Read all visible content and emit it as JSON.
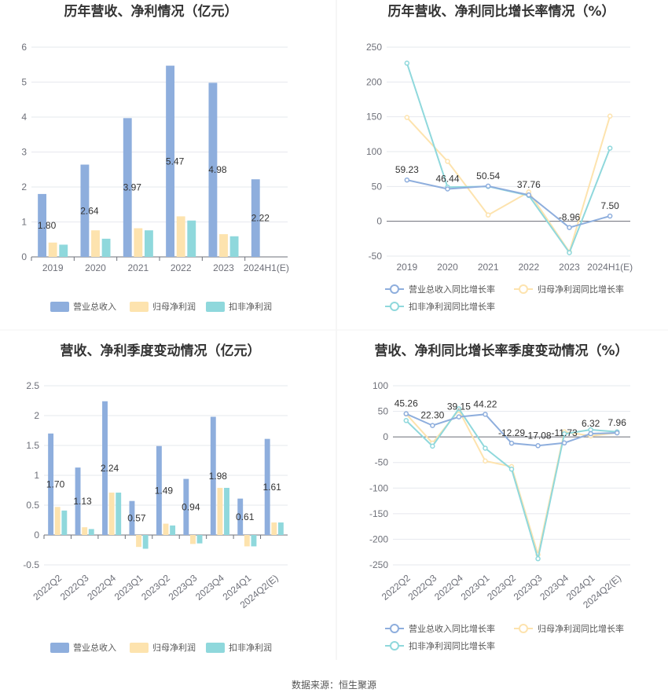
{
  "source": "数据来源：恒生聚源",
  "colors": {
    "revenue": "#8eaedd",
    "net_profit": "#fde3ae",
    "deducted_profit": "#8fd8dc",
    "grid": "#e6e8ee",
    "axis": "#6e7079",
    "divider": "#eeeeee"
  },
  "chart_data": [
    {
      "id": "annual-bar",
      "type": "bar",
      "title": "历年营收、净利情况（亿元）",
      "categories": [
        "2019",
        "2020",
        "2021",
        "2022",
        "2023",
        "2024H1(E)"
      ],
      "ylim": [
        0,
        6
      ],
      "yticks": [
        0,
        1,
        2,
        3,
        4,
        5,
        6
      ],
      "grid": true,
      "legend_position": "bottom",
      "series": [
        {
          "name": "营业总收入",
          "color": "#8eaedd",
          "values": [
            1.8,
            2.64,
            3.97,
            5.47,
            4.98,
            2.22
          ],
          "labels": [
            "1.80",
            "2.64",
            "3.97",
            "5.47",
            "4.98",
            "2.22"
          ]
        },
        {
          "name": "归母净利润",
          "color": "#fde3ae",
          "values": [
            0.41,
            0.76,
            0.82,
            1.16,
            0.65,
            null
          ]
        },
        {
          "name": "扣非净利润",
          "color": "#8fd8dc",
          "values": [
            0.35,
            0.52,
            0.76,
            1.04,
            0.59,
            null
          ]
        }
      ]
    },
    {
      "id": "annual-line",
      "type": "line",
      "title": "历年营收、净利同比增长率情况（%）",
      "categories": [
        "2019",
        "2020",
        "2021",
        "2022",
        "2023",
        "2024H1(E)"
      ],
      "ylim": [
        -50,
        250
      ],
      "yticks": [
        -50,
        0,
        50,
        100,
        150,
        200,
        250
      ],
      "grid": true,
      "legend_position": "bottom",
      "series": [
        {
          "name": "营业总收入同比增长率",
          "color": "#8eaedd",
          "values": [
            59.23,
            46.44,
            50.54,
            37.76,
            -8.96,
            7.5
          ],
          "labels": [
            "59.23",
            "46.44",
            "50.54",
            "37.76",
            "-8.96",
            "7.50"
          ]
        },
        {
          "name": "归母净利润同比增长率",
          "color": "#fde3ae",
          "values": [
            149,
            86,
            9,
            42,
            -44,
            151
          ]
        },
        {
          "name": "扣非净利润同比增长率",
          "color": "#8fd8dc",
          "values": [
            227,
            49,
            50,
            37,
            -45,
            105
          ]
        }
      ]
    },
    {
      "id": "quarter-bar",
      "type": "bar",
      "title": "营收、净利季度变动情况（亿元）",
      "categories": [
        "2022Q2",
        "2022Q3",
        "2022Q4",
        "2023Q1",
        "2023Q2",
        "2023Q3",
        "2023Q4",
        "2024Q1",
        "2024Q2(E)"
      ],
      "ylim": [
        -0.5,
        2.5
      ],
      "yticks": [
        -0.5,
        0,
        0.5,
        1,
        1.5,
        2,
        2.5
      ],
      "grid": true,
      "legend_position": "bottom",
      "series": [
        {
          "name": "营业总收入",
          "color": "#8eaedd",
          "values": [
            1.7,
            1.13,
            2.24,
            0.57,
            1.49,
            0.94,
            1.98,
            0.61,
            1.61
          ],
          "labels": [
            "1.70",
            "1.13",
            "2.24",
            "0.57",
            "1.49",
            "0.94",
            "1.98",
            "0.61",
            "1.61"
          ]
        },
        {
          "name": "归母净利润",
          "color": "#fde3ae",
          "values": [
            0.47,
            0.13,
            0.71,
            -0.2,
            0.19,
            -0.15,
            0.79,
            -0.19,
            0.21
          ]
        },
        {
          "name": "扣非净利润",
          "color": "#8fd8dc",
          "values": [
            0.41,
            0.1,
            0.71,
            -0.23,
            0.16,
            -0.14,
            0.79,
            -0.19,
            0.21
          ]
        }
      ]
    },
    {
      "id": "quarter-line",
      "type": "line",
      "title": "营收、净利同比增长率季度变动情况（%）",
      "categories": [
        "2022Q2",
        "2022Q3",
        "2022Q4",
        "2023Q1",
        "2023Q2",
        "2023Q3",
        "2023Q4",
        "2024Q1",
        "2024Q2(E)"
      ],
      "ylim": [
        -250,
        100
      ],
      "yticks": [
        -250,
        -200,
        -150,
        -100,
        -50,
        0,
        50,
        100
      ],
      "grid": true,
      "legend_position": "bottom",
      "series": [
        {
          "name": "营业总收入同比增长率",
          "color": "#8eaedd",
          "values": [
            45.26,
            22.3,
            39.15,
            44.22,
            -12.29,
            -17.08,
            -11.73,
            6.32,
            7.96
          ],
          "labels": [
            "45.26",
            "22.30",
            "39.15",
            "44.22",
            "-12.29",
            "-17.08",
            "-11.73",
            "6.32",
            "7.96"
          ]
        },
        {
          "name": "归母净利润同比增长率",
          "color": "#fde3ae",
          "values": [
            45,
            -12,
            52,
            -47,
            -58,
            -230,
            10,
            2,
            8
          ]
        },
        {
          "name": "扣非净利润同比增长率",
          "color": "#8fd8dc",
          "values": [
            32,
            -18,
            55,
            -22,
            -63,
            -238,
            6,
            14,
            10
          ]
        }
      ]
    }
  ]
}
